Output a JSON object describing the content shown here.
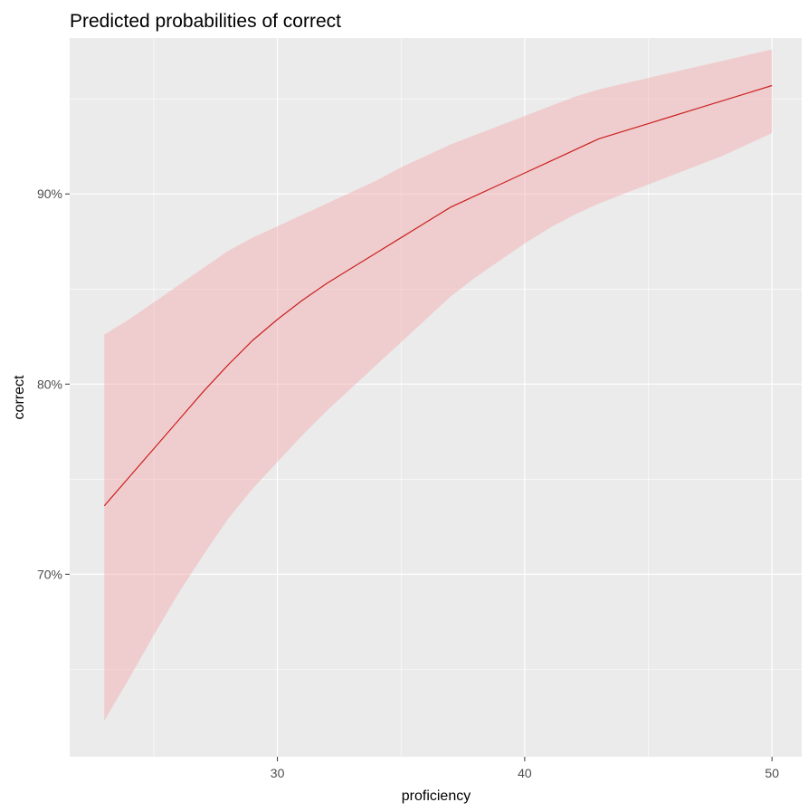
{
  "chart_data": {
    "type": "line",
    "title": "Predicted probabilities of correct",
    "xlabel": "proficiency",
    "ylabel": "correct",
    "xlim": [
      21.6,
      51.2
    ],
    "ylim": [
      0.604,
      0.982
    ],
    "x_ticks": [
      30,
      40,
      50
    ],
    "x_tick_labels": [
      "30",
      "40",
      "50"
    ],
    "y_ticks": [
      0.7,
      0.8,
      0.9
    ],
    "y_tick_labels": [
      "70%",
      "80%",
      "90%"
    ],
    "x_minor_ticks": [
      25,
      35,
      45
    ],
    "y_minor_ticks": [
      0.65,
      0.75,
      0.85,
      0.95
    ],
    "grid": true,
    "series": [
      {
        "x": [
          23,
          24,
          25,
          26,
          27,
          28,
          29,
          30,
          31,
          32,
          33,
          34,
          35,
          36,
          37,
          38,
          39,
          40,
          41,
          42,
          43,
          44,
          45,
          46,
          47,
          48,
          49,
          50
        ],
        "y": [
          0.736,
          0.751,
          0.766,
          0.781,
          0.796,
          0.81,
          0.823,
          0.834,
          0.844,
          0.853,
          0.861,
          0.869,
          0.877,
          0.885,
          0.893,
          0.899,
          0.905,
          0.911,
          0.917,
          0.923,
          0.929,
          0.933,
          0.937,
          0.941,
          0.945,
          0.949,
          0.953,
          0.957
        ],
        "ci_lower": [
          0.623,
          0.645,
          0.668,
          0.69,
          0.71,
          0.729,
          0.745,
          0.759,
          0.773,
          0.786,
          0.798,
          0.81,
          0.822,
          0.834,
          0.846,
          0.856,
          0.865,
          0.874,
          0.882,
          0.889,
          0.895,
          0.9,
          0.905,
          0.91,
          0.915,
          0.92,
          0.926,
          0.932
        ],
        "ci_upper": [
          0.826,
          0.834,
          0.843,
          0.852,
          0.861,
          0.87,
          0.877,
          0.883,
          0.889,
          0.895,
          0.901,
          0.907,
          0.914,
          0.92,
          0.926,
          0.931,
          0.936,
          0.941,
          0.946,
          0.951,
          0.955,
          0.958,
          0.961,
          0.964,
          0.967,
          0.97,
          0.973,
          0.976
        ]
      }
    ]
  },
  "colors": {
    "panel": "#ebebeb",
    "line": "#cc1f1f",
    "ribbon": "#f4a9ab",
    "ribbon_opacity": 0.45
  }
}
